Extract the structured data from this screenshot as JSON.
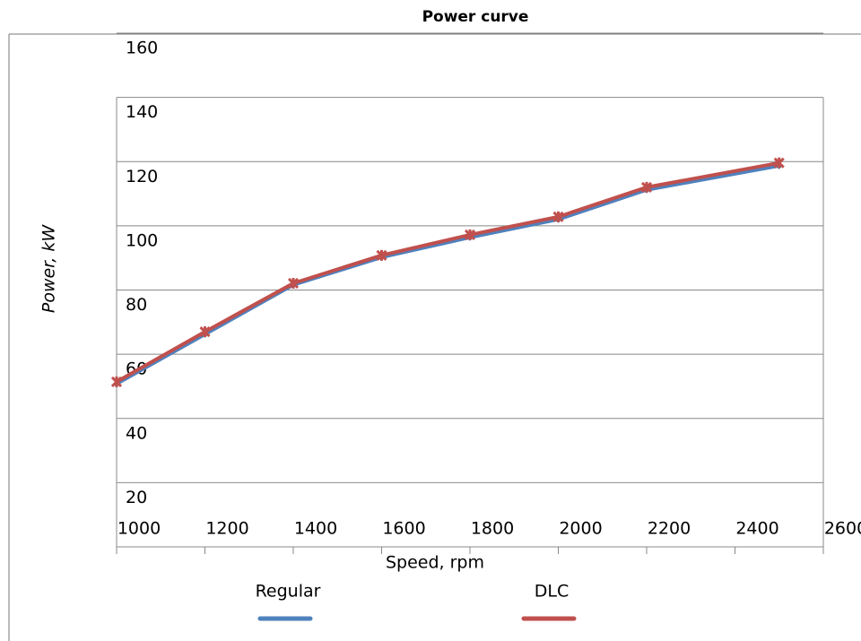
{
  "chart_data": {
    "type": "line",
    "title": "Power curve",
    "x_label": "Speed, rpm",
    "y_label": "Power, kW",
    "x": [
      1000,
      1200,
      1400,
      1600,
      1800,
      2000,
      2200,
      2500
    ],
    "series": [
      {
        "name": "Regular",
        "color": "#4f81bd",
        "values": [
          50.8,
          66.2,
          81.6,
          90.2,
          96.4,
          102,
          111.2,
          118.7
        ]
      },
      {
        "name": "DLC",
        "color": "#c0504d",
        "values": [
          51.4,
          67,
          82.1,
          90.8,
          97.2,
          102.8,
          112,
          119.6
        ]
      }
    ],
    "xlim": [
      1000,
      2600
    ],
    "xticks": [
      1000,
      1200,
      1400,
      1600,
      1800,
      2000,
      2200,
      2400,
      2600
    ],
    "ylim": [
      0,
      160
    ],
    "yticks": [
      20,
      40,
      60,
      80,
      100,
      120,
      140,
      160
    ],
    "grid": true,
    "legend": "bottom"
  }
}
